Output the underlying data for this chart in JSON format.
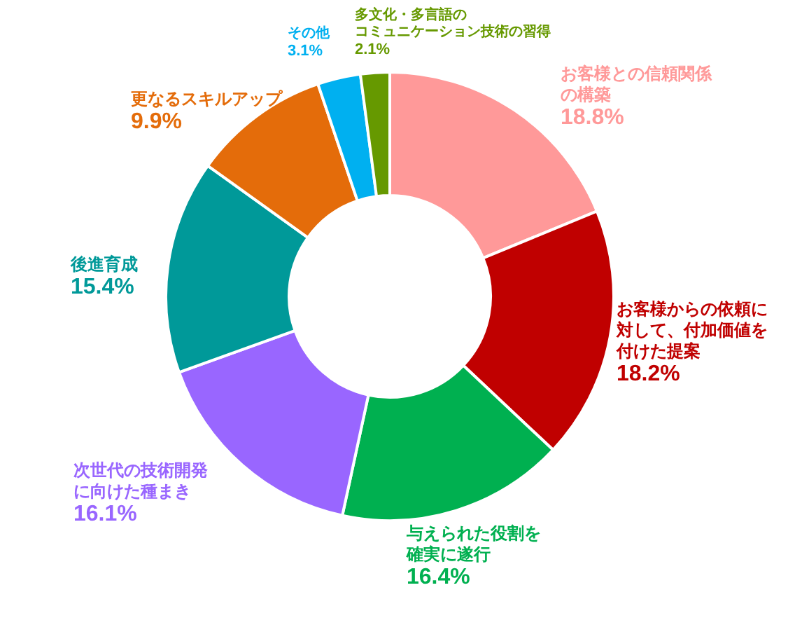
{
  "chart_data": {
    "type": "donut",
    "categories": [
      "お客様との信頼関係の構築",
      "お客様からの依頼に対して、付加価値を付けた提案",
      "与えられた役割を確実に遂行",
      "次世代の技術開発に向けた種まき",
      "後進育成",
      "更なるスキルアップ",
      "その他",
      "多文化・多言語のコミュニケーション技術の習得"
    ],
    "values": [
      18.8,
      18.2,
      16.4,
      16.1,
      15.4,
      9.9,
      3.1,
      2.1
    ],
    "colors": [
      "#ff9999",
      "#c00000",
      "#00b050",
      "#9966ff",
      "#009999",
      "#e46c0a",
      "#00b0f0",
      "#669900"
    ],
    "value_labels": [
      "18.8%",
      "18.2%",
      "16.4%",
      "16.1%",
      "15.4%",
      "9.9%",
      "3.1%",
      "2.1%"
    ]
  }
}
